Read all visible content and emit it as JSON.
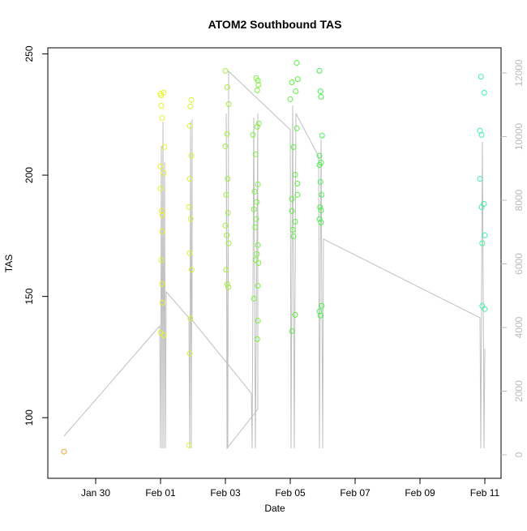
{
  "chart_data": {
    "type": "scatter",
    "title": "ATOM2 Southbound TAS",
    "xlabel": "Date",
    "ylabel": "TAS",
    "xlim": [
      28.525,
      42.5
    ],
    "xticks": [
      {
        "value": 30,
        "label": "Jan 30"
      },
      {
        "value": 32,
        "label": "Feb 01"
      },
      {
        "value": 34,
        "label": "Feb 03"
      },
      {
        "value": 36,
        "label": "Feb 05"
      },
      {
        "value": 38,
        "label": "Feb 07"
      },
      {
        "value": 40,
        "label": "Feb 09"
      },
      {
        "value": 42,
        "label": "Feb 11"
      }
    ],
    "ylim": [
      75,
      252.5
    ],
    "yticks": [
      100,
      150,
      200,
      250
    ],
    "y2lim": [
      -739,
      12790
    ],
    "y2ticks": [
      0,
      2000,
      4000,
      6000,
      8000,
      10000,
      12000
    ],
    "y2color": "#bbbbbb",
    "series": [
      {
        "type": "scatter",
        "color": "#f4a437",
        "x": [
          29.025
        ],
        "values": [
          86.0
        ]
      },
      {
        "type": "scatter",
        "color": "#e5f230",
        "x": [
          32.0,
          32.02,
          32.09,
          32.02,
          32.05,
          32.12,
          32.0,
          32.1,
          32.0,
          32.03,
          32.06,
          32.05,
          32.02,
          32.04,
          32.06,
          32.0,
          32.1
        ],
        "values": [
          233.6,
          232.9,
          234.0,
          228.6,
          223.6,
          211.6,
          203.6,
          200.9,
          194.5,
          185.2,
          183.5,
          176.8,
          165.0,
          155.1,
          147.4,
          135.0,
          134.0
        ]
      },
      {
        "type": "scatter",
        "color": "#d5f530",
        "x": [
          32.95,
          32.92,
          32.9,
          32.95,
          32.9,
          32.88,
          32.93,
          32.9,
          32.96,
          32.92,
          32.9,
          32.88
        ],
        "values": [
          231.0,
          228.3,
          220.3,
          208.0,
          198.5,
          186.8,
          182.0,
          167.8,
          161.0,
          141.0,
          126.4,
          88.6
        ]
      },
      {
        "type": "scatter",
        "color": "#a0f040",
        "x": [
          34.0,
          34.06,
          34.1,
          34.05,
          34.0,
          34.07,
          34.02,
          34.08,
          34.0,
          34.04,
          34.1,
          34.02,
          34.06,
          34.09
        ],
        "values": [
          243.0,
          236.3,
          229.3,
          217.0,
          211.9,
          198.5,
          191.9,
          184.5,
          179.2,
          175.2,
          171.9,
          161.0,
          155.1,
          153.8
        ]
      },
      {
        "type": "scatter",
        "color": "#7cf040",
        "x": [
          34.95,
          35.0,
          35.02,
          34.98,
          35.03,
          34.98,
          34.85,
          34.93,
          35.0,
          34.9,
          34.97,
          34.88,
          34.95,
          34.92,
          35.0,
          34.97,
          34.93,
          35.02,
          35.0,
          34.88,
          35.0,
          34.98
        ],
        "values": [
          240.0,
          239.0,
          237.3,
          235.0,
          221.3,
          220.0,
          216.6,
          208.6,
          196.2,
          193.2,
          188.9,
          185.9,
          181.9,
          178.5,
          171.2,
          167.5,
          165.1,
          163.8,
          154.4,
          149.1,
          140.0,
          132.4
        ]
      },
      {
        "type": "scatter",
        "color": "#5cf040",
        "x": [
          36.2,
          36.23,
          36.05,
          36.17,
          36.0,
          36.2,
          36.1,
          36.15,
          36.22,
          36.22,
          36.05,
          36.05,
          36.15,
          36.08,
          36.1,
          36.15,
          36.05
        ],
        "values": [
          246.3,
          239.6,
          238.3,
          234.6,
          231.3,
          219.3,
          211.6,
          200.2,
          196.5,
          191.9,
          190.2,
          185.2,
          180.8,
          177.5,
          174.8,
          142.4,
          135.7
        ]
      },
      {
        "type": "scatter",
        "color": "#48f050",
        "x": [
          36.9,
          36.93,
          36.95,
          36.98,
          36.9,
          36.95,
          36.9,
          36.93,
          36.97,
          36.92,
          36.95,
          36.9,
          36.95,
          36.97,
          36.9,
          36.93
        ],
        "values": [
          243.0,
          234.6,
          232.3,
          216.3,
          208.0,
          205.2,
          204.2,
          197.2,
          191.9,
          186.8,
          185.5,
          181.9,
          180.5,
          146.1,
          143.8,
          142.1
        ]
      },
      {
        "type": "scatter",
        "color": "#40f0a8",
        "x": [
          41.88,
          41.98,
          41.85,
          41.9,
          41.85,
          41.9,
          41.97,
          42.0,
          41.92,
          41.92,
          42.0
        ],
        "values": [
          240.6,
          234.0,
          218.3,
          216.6,
          198.5,
          186.8,
          188.2,
          175.2,
          171.9,
          146.1,
          144.8
        ]
      },
      {
        "type": "line",
        "axis": "y2",
        "color": "#c0c0c0",
        "x": [
          29.025,
          31.975,
          32.0,
          32.025,
          32.05,
          32.075,
          32.1,
          32.125,
          32.15,
          32.175,
          32.875,
          32.9,
          32.925,
          32.95,
          32.975,
          32.975,
          34.8,
          34.825,
          34.875,
          34.925,
          35.0,
          35.0,
          34.05,
          34.025,
          34.075,
          34.1,
          36.0,
          36.025,
          36.075,
          36.125,
          36.175,
          36.875,
          36.9,
          36.95,
          37.0,
          37.025,
          41.85,
          41.875,
          41.925,
          41.975,
          42.0
        ],
        "values": [
          586,
          4051,
          204,
          9708,
          204,
          10472,
          204,
          9198,
          204,
          5121,
          4306,
          204,
          10472,
          204,
          10549,
          4230,
          1936,
          204,
          10600,
          204,
          10727,
          1427,
          204,
          10727,
          204,
          12052,
          10217,
          204,
          10982,
          204,
          10727,
          9377,
          204,
          9912,
          204,
          6778,
          4306,
          204,
          9835,
          204,
          3338
        ]
      }
    ]
  }
}
